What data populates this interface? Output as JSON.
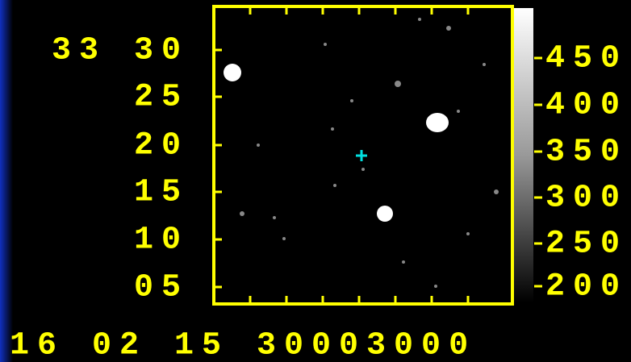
{
  "left_axis": {
    "labels": [
      "33 30",
      "25",
      "20",
      "15",
      "10",
      "05"
    ]
  },
  "bottom_axis": {
    "label": "16 02 15 30003000"
  },
  "colorbar": {
    "labels": [
      "450",
      "400",
      "350",
      "300",
      "250",
      "200"
    ]
  }
}
